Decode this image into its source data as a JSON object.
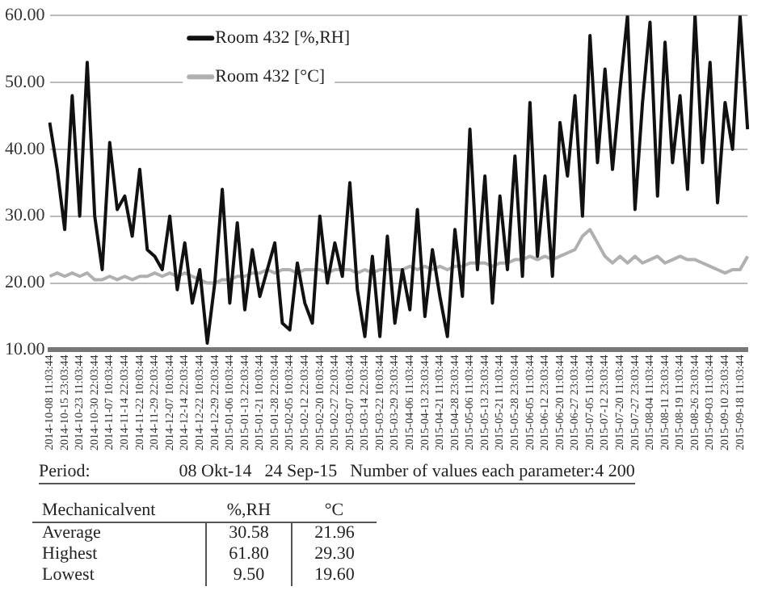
{
  "chart_data": {
    "type": "line",
    "categories": [
      "2014-10-08 11:03:44",
      null,
      "2014-10-15 23:03:44",
      null,
      "2014-10-23 11:03:44",
      null,
      "2014-10-30 22:03:44",
      null,
      "2014-11-07 10:03:44",
      null,
      "2014-11-14 22:03:44",
      null,
      "2014-11-22 10:03:44",
      null,
      "2014-11-29 22:03:44",
      null,
      "2014-12-07 10:03:44",
      null,
      "2014-12-14 22:03:44",
      null,
      "2014-12-22 10:03:44",
      null,
      "2014-12-29 22:03:44",
      null,
      "2015-01-06 10:03:44",
      null,
      "2015-01-13 22:03:44",
      null,
      "2015-01-21 10:03:44",
      null,
      "2015-01-28 22:03:44",
      null,
      "2015-02-05 10:03:44",
      null,
      "2015-02-12 22:03:44",
      null,
      "2015-02-20 10:03:44",
      null,
      "2015-02-27 22:03:44",
      null,
      "2015-03-07 10:03:44",
      null,
      "2015-03-14 22:03:44",
      null,
      "2015-03-22 10:03:44",
      null,
      "2015-03-29 23:03:44",
      null,
      "2015-04-06 11:03:44",
      null,
      "2015-04-13 23:03:44",
      null,
      "2015-04-21 11:03:44",
      null,
      "2015-04-28 23:03:44",
      null,
      "2015-05-06 11:03:44",
      null,
      "2015-05-13 23:03:44",
      null,
      "2015-05-21 11:03:44",
      null,
      "2015-05-28 23:03:44",
      null,
      "2015-06-05 11:03:44",
      null,
      "2015-06-12 23:03:44",
      null,
      "2015-06-20 11:03:44",
      null,
      "2015-06-27 23:03:44",
      null,
      "2015-07-05 11:03:44",
      null,
      "2015-07-12 23:03:44",
      null,
      "2015-07-20 11:03:44",
      null,
      "2015-07-27 23:03:44",
      null,
      "2015-08-04 11:03:44",
      null,
      "2015-08-11 23:03:44",
      null,
      "2015-08-19 11:03:44",
      null,
      "2015-08-26 23:03:44",
      null,
      "2015-09-03 11:03:44",
      null,
      "2015-09-10 23:03:44",
      null,
      "2015-09-18 11:03:44",
      null
    ],
    "series": [
      {
        "name": "Room 432 [%,RH]",
        "color": "#111111",
        "values": [
          44,
          37,
          28,
          48,
          30,
          53,
          30,
          22,
          41,
          31,
          33,
          27,
          37,
          25,
          24,
          22,
          30,
          19,
          26,
          17,
          22,
          11,
          20,
          34,
          17,
          29,
          16,
          25,
          18,
          22,
          26,
          14,
          13,
          23,
          17,
          14,
          30,
          20,
          26,
          21,
          35,
          19,
          12,
          24,
          12,
          27,
          14,
          22,
          16,
          31,
          15,
          25,
          18,
          12,
          28,
          18,
          43,
          22,
          36,
          17,
          33,
          22,
          39,
          21,
          47,
          24,
          36,
          21,
          44,
          36,
          48,
          30,
          57,
          38,
          52,
          37,
          49,
          60,
          31,
          47,
          59,
          33,
          56,
          38,
          48,
          34,
          60,
          38,
          53,
          32,
          47,
          40,
          60,
          43
        ]
      },
      {
        "name": "Room 432 [°C]",
        "color": "#b0b0b0",
        "values": [
          21,
          21.5,
          21,
          21.5,
          21,
          21.5,
          20.5,
          20.5,
          21,
          20.5,
          21,
          20.5,
          21,
          21,
          21.5,
          21,
          21.5,
          21,
          21.5,
          21,
          20.5,
          20,
          20,
          20.5,
          20.5,
          21,
          21,
          21.5,
          21.5,
          22,
          21.5,
          22,
          22,
          21.5,
          22,
          22,
          22,
          21.5,
          22,
          22,
          22,
          21.5,
          22,
          21.5,
          22,
          22,
          22,
          22,
          22.5,
          22,
          22.5,
          22,
          22.5,
          22,
          22.5,
          22.5,
          23,
          23,
          23,
          22.5,
          23,
          23,
          23.5,
          23.5,
          24,
          23.5,
          24,
          23.5,
          24,
          24.5,
          25,
          27,
          28,
          26,
          24,
          23,
          24,
          23,
          24,
          23,
          23.5,
          24,
          23,
          23.5,
          24,
          23.5,
          23.5,
          23,
          22.5,
          22,
          21.5,
          22,
          22,
          24
        ]
      }
    ],
    "ylim": [
      10,
      60
    ],
    "yticks": [
      {
        "value": 10,
        "label": "10.00"
      },
      {
        "value": 20,
        "label": "20.00"
      },
      {
        "value": 30,
        "label": "30.00"
      },
      {
        "value": 40,
        "label": "40.00"
      },
      {
        "value": 50,
        "label": "50.00"
      },
      {
        "value": 60,
        "label": "60.00"
      }
    ],
    "grid": "y",
    "legend": "top left",
    "marker": "none",
    "line_style": "solid",
    "annotations": [
      "Period:",
      "08 Okt-14",
      "24 Sep-15",
      "Number of values each parameter:4 200",
      "Mechanicalvent",
      "%,RH",
      "°C",
      "Average",
      "30.58",
      "21.96",
      "Highest",
      "61.80",
      "29.30",
      "Lowest",
      "9.50",
      "19.60"
    ]
  }
}
